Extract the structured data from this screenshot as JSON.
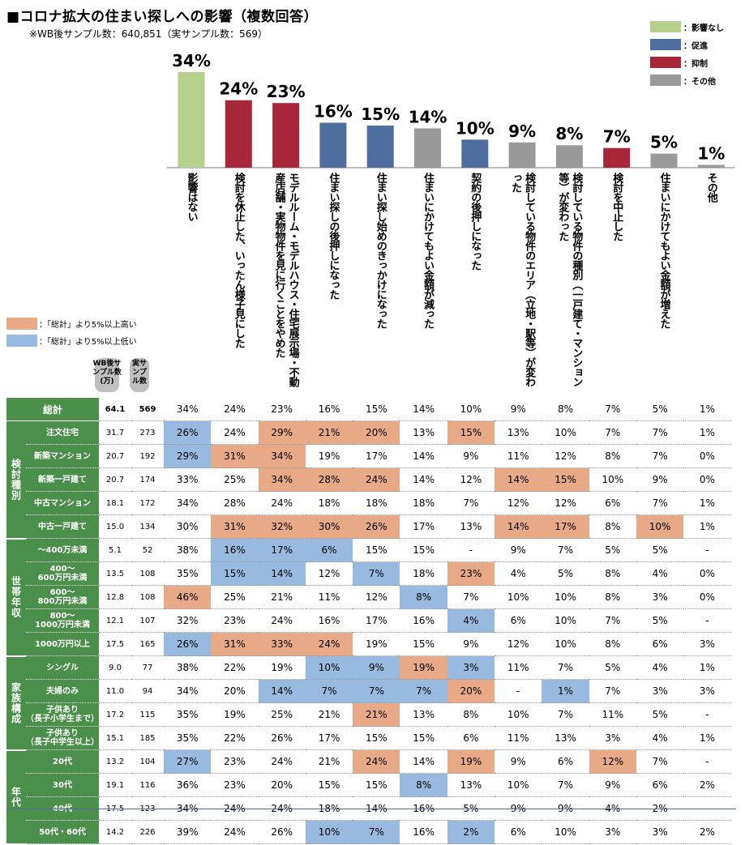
{
  "title": "■コロナ拡大の住まい探しへの影響（複数回答）",
  "subtitle": "※WB後サンプル数：640,851（実サンプル数：569）",
  "legend": [
    {
      "label": "：影響なし",
      "color": "#b6cf8a"
    },
    {
      "label": "：促進",
      "color": "#4f6ea0"
    },
    {
      "label": "：抑制",
      "color": "#a8263a"
    },
    {
      "label": "：その他",
      "color": "#999999"
    }
  ],
  "highlight_legend": [
    {
      "label": "：「総計」より5%以上高い",
      "color": "#e7a986"
    },
    {
      "label": "：「総計」より5%以上低い",
      "color": "#98b9e0"
    }
  ],
  "column_headers": {
    "wb": "WB後サンプル数(万)",
    "actual": "実サンプル数"
  },
  "chart_data": {
    "type": "bar",
    "categories": [
      "影響はない",
      "検討を休止した、いったん様子見にした",
      "モデルルーム・モデルハウス・住宅展示場・不動産店舗・実物物件を見に行くことをやめた",
      "住まい探しの後押しになった",
      "住まい探し始めのきっかけになった",
      "住まいにかけてもよい金額が減った",
      "契約の後押しになった",
      "検討している物件のエリア（立地・駅等）が変わった",
      "検討している物件の種別（一戸建て・マンション等）が変わった",
      "検討を中止した",
      "住まいにかけてもよい金額が増えた",
      "その他"
    ],
    "values": [
      34,
      24,
      23,
      16,
      15,
      14,
      10,
      9,
      8,
      7,
      5,
      1
    ],
    "value_labels": [
      "34%",
      "24%",
      "23%",
      "16%",
      "15%",
      "14%",
      "10%",
      "9%",
      "8%",
      "7%",
      "5%",
      "1%"
    ],
    "groups": [
      "影響なし",
      "抑制",
      "抑制",
      "促進",
      "促進",
      "その他",
      "促進",
      "その他",
      "その他",
      "抑制",
      "その他",
      "その他"
    ],
    "group_colors": {
      "影響なし": "#b6cf8a",
      "促進": "#4f6ea0",
      "抑制": "#a8263a",
      "その他": "#999999"
    }
  },
  "table": {
    "total": {
      "label": "総計",
      "wb": "64.1",
      "n": "569",
      "values": [
        "34%",
        "24%",
        "23%",
        "16%",
        "15%",
        "14%",
        "10%",
        "9%",
        "8%",
        "7%",
        "5%",
        "1%"
      ]
    },
    "groups": [
      {
        "label": "検討種別",
        "rows": [
          {
            "label": "注文住宅",
            "wb": "31.7",
            "n": "273",
            "values": [
              "26%",
              "24%",
              "29%",
              "21%",
              "20%",
              "13%",
              "15%",
              "13%",
              "10%",
              "7%",
              "7%",
              "1%"
            ],
            "marks": [
              "lo",
              "",
              "hi",
              "hi",
              "hi",
              "",
              "hi",
              "",
              "",
              "",
              "",
              ""
            ]
          },
          {
            "label": "新築マンション",
            "wb": "20.7",
            "n": "192",
            "values": [
              "29%",
              "31%",
              "34%",
              "19%",
              "17%",
              "14%",
              "9%",
              "11%",
              "12%",
              "8%",
              "7%",
              "0%"
            ],
            "marks": [
              "lo",
              "hi",
              "hi",
              "",
              "",
              "",
              "",
              "",
              "",
              "",
              "",
              ""
            ]
          },
          {
            "label": "新築一戸建て",
            "wb": "20.7",
            "n": "174",
            "values": [
              "33%",
              "25%",
              "34%",
              "28%",
              "24%",
              "14%",
              "12%",
              "14%",
              "15%",
              "10%",
              "9%",
              "0%"
            ],
            "marks": [
              "",
              "",
              "hi",
              "hi",
              "hi",
              "",
              "",
              "hi",
              "hi",
              "",
              "",
              ""
            ]
          },
          {
            "label": "中古マンション",
            "wb": "18.1",
            "n": "172",
            "values": [
              "34%",
              "28%",
              "24%",
              "18%",
              "18%",
              "18%",
              "7%",
              "12%",
              "12%",
              "6%",
              "7%",
              "1%"
            ],
            "marks": [
              "",
              "",
              "",
              "",
              "",
              "",
              "",
              "",
              "",
              "",
              "",
              ""
            ]
          },
          {
            "label": "中古一戸建て",
            "wb": "15.0",
            "n": "134",
            "values": [
              "30%",
              "31%",
              "32%",
              "30%",
              "26%",
              "17%",
              "13%",
              "14%",
              "17%",
              "8%",
              "10%",
              "1%"
            ],
            "marks": [
              "",
              "hi",
              "hi",
              "hi",
              "hi",
              "",
              "",
              "hi",
              "hi",
              "",
              "hi",
              ""
            ]
          }
        ]
      },
      {
        "label": "世帯年収",
        "rows": [
          {
            "label": "～400万未満",
            "wb": "5.1",
            "n": "52",
            "values": [
              "38%",
              "16%",
              "17%",
              "6%",
              "15%",
              "15%",
              "-",
              "9%",
              "7%",
              "5%",
              "5%",
              "-"
            ],
            "marks": [
              "",
              "lo",
              "lo",
              "lo",
              "",
              "",
              "",
              "",
              "",
              "",
              "",
              ""
            ]
          },
          {
            "label": "400～\n600万円未満",
            "wb": "13.5",
            "n": "108",
            "values": [
              "35%",
              "15%",
              "14%",
              "12%",
              "7%",
              "18%",
              "23%",
              "4%",
              "5%",
              "8%",
              "4%",
              "0%"
            ],
            "marks": [
              "",
              "lo",
              "lo",
              "",
              "lo",
              "",
              "hi",
              "",
              "",
              "",
              "",
              ""
            ]
          },
          {
            "label": "600～\n800万円未満",
            "wb": "12.8",
            "n": "108",
            "values": [
              "46%",
              "25%",
              "21%",
              "11%",
              "12%",
              "8%",
              "7%",
              "10%",
              "10%",
              "8%",
              "3%",
              "0%"
            ],
            "marks": [
              "hi",
              "",
              "",
              "",
              "",
              "lo",
              "",
              "",
              "",
              "",
              "",
              ""
            ]
          },
          {
            "label": "800～\n1000万円未満",
            "wb": "12.1",
            "n": "107",
            "values": [
              "32%",
              "23%",
              "24%",
              "16%",
              "17%",
              "16%",
              "4%",
              "6%",
              "10%",
              "7%",
              "5%",
              "-"
            ],
            "marks": [
              "",
              "",
              "",
              "",
              "",
              "",
              "lo",
              "",
              "",
              "",
              "",
              ""
            ]
          },
          {
            "label": "1000万円以上",
            "wb": "17.5",
            "n": "165",
            "values": [
              "26%",
              "31%",
              "33%",
              "24%",
              "19%",
              "15%",
              "9%",
              "12%",
              "10%",
              "8%",
              "6%",
              "3%"
            ],
            "marks": [
              "lo",
              "hi",
              "hi",
              "hi",
              "",
              "",
              "",
              "",
              "",
              "",
              "",
              ""
            ]
          }
        ]
      },
      {
        "label": "家族構成",
        "rows": [
          {
            "label": "シングル",
            "wb": "9.0",
            "n": "77",
            "values": [
              "38%",
              "22%",
              "19%",
              "10%",
              "9%",
              "19%",
              "3%",
              "11%",
              "7%",
              "5%",
              "4%",
              "1%"
            ],
            "marks": [
              "",
              "",
              "",
              "lo",
              "lo",
              "hi",
              "lo",
              "",
              "",
              "",
              "",
              ""
            ]
          },
          {
            "label": "夫婦のみ",
            "wb": "11.0",
            "n": "94",
            "values": [
              "34%",
              "20%",
              "14%",
              "7%",
              "7%",
              "7%",
              "20%",
              "-",
              "1%",
              "7%",
              "3%",
              "3%"
            ],
            "marks": [
              "",
              "",
              "lo",
              "lo",
              "lo",
              "lo",
              "hi",
              "",
              "lo",
              "",
              "",
              ""
            ]
          },
          {
            "label": "子供あり\n（長子小学生まで）",
            "wb": "17.2",
            "n": "115",
            "values": [
              "35%",
              "19%",
              "25%",
              "21%",
              "21%",
              "13%",
              "8%",
              "10%",
              "7%",
              "11%",
              "5%",
              "-"
            ],
            "marks": [
              "",
              "",
              "",
              "",
              "hi",
              "",
              "",
              "",
              "",
              "",
              "",
              ""
            ]
          },
          {
            "label": "子供あり\n（長子中学生以上）",
            "wb": "15.1",
            "n": "185",
            "values": [
              "35%",
              "22%",
              "26%",
              "17%",
              "15%",
              "15%",
              "6%",
              "11%",
              "13%",
              "3%",
              "4%",
              "1%"
            ],
            "marks": [
              "",
              "",
              "",
              "",
              "",
              "",
              "",
              "",
              "",
              "",
              "",
              ""
            ]
          }
        ]
      },
      {
        "label": "年代",
        "rows": [
          {
            "label": "20代",
            "wb": "13.2",
            "n": "104",
            "values": [
              "27%",
              "23%",
              "24%",
              "21%",
              "24%",
              "14%",
              "19%",
              "9%",
              "6%",
              "12%",
              "7%",
              "-"
            ],
            "marks": [
              "lo",
              "",
              "",
              "",
              "hi",
              "",
              "hi",
              "",
              "",
              "hi",
              "",
              ""
            ]
          },
          {
            "label": "30代",
            "wb": "19.1",
            "n": "116",
            "values": [
              "36%",
              "23%",
              "20%",
              "15%",
              "15%",
              "8%",
              "13%",
              "10%",
              "7%",
              "9%",
              "6%",
              "2%"
            ],
            "marks": [
              "",
              "",
              "",
              "",
              "",
              "lo",
              "",
              "",
              "",
              "",
              "",
              ""
            ]
          },
          {
            "label": "40代",
            "wb": "17.5",
            "n": "123",
            "values": [
              "34%",
              "24%",
              "24%",
              "18%",
              "14%",
              "16%",
              "5%",
              "9%",
              "9%",
              "4%",
              "2%",
              "-"
            ],
            "marks": [
              "",
              "",
              "",
              "",
              "",
              "",
              "",
              "",
              "",
              "",
              "",
              ""
            ]
          },
          {
            "label": "50代・60代",
            "wb": "14.2",
            "n": "226",
            "values": [
              "39%",
              "24%",
              "26%",
              "10%",
              "7%",
              "16%",
              "2%",
              "6%",
              "10%",
              "3%",
              "3%",
              "2%"
            ],
            "marks": [
              "",
              "",
              "",
              "lo",
              "lo",
              "",
              "lo",
              "",
              "",
              "",
              "",
              ""
            ]
          }
        ]
      }
    ]
  }
}
